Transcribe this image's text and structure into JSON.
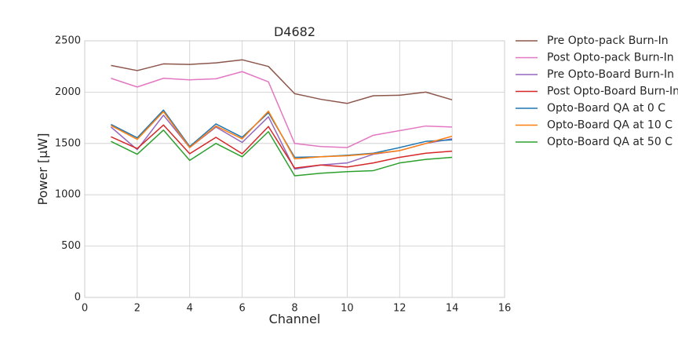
{
  "chart_data": {
    "type": "line",
    "title": "D4682",
    "xlabel": "Channel",
    "ylabel": "Power [μW]",
    "xlim": [
      0,
      16
    ],
    "ylim": [
      0,
      2500
    ],
    "xticks": [
      0,
      2,
      4,
      6,
      8,
      10,
      12,
      14,
      16
    ],
    "yticks": [
      0,
      500,
      1000,
      1500,
      2000,
      2500
    ],
    "grid": true,
    "legend_position": "outside-right",
    "x": [
      1,
      2,
      3,
      4,
      5,
      6,
      7,
      8,
      9,
      10,
      11,
      12,
      13,
      14
    ],
    "series": [
      {
        "name": "Pre Opto-pack Burn-In",
        "color": "#8c564b",
        "values": [
          2260,
          2210,
          2275,
          2270,
          2285,
          2315,
          2250,
          1985,
          1930,
          1890,
          1965,
          1970,
          2000,
          1925
        ]
      },
      {
        "name": "Post Opto-pack Burn-In",
        "color": "#e377c2",
        "values": [
          2135,
          2050,
          2135,
          2120,
          2130,
          2200,
          2100,
          1500,
          1470,
          1460,
          1580,
          1625,
          1670,
          1660
        ]
      },
      {
        "name": "Pre Opto-Board Burn-In",
        "color": "#9467bd",
        "values": [
          1660,
          1440,
          1775,
          1460,
          1660,
          1510,
          1760,
          1250,
          1290,
          1310,
          1395,
          1430,
          1500,
          1545
        ]
      },
      {
        "name": "Post Opto-Board Burn-In",
        "color": "#d62728",
        "values": [
          1565,
          1450,
          1680,
          1400,
          1560,
          1400,
          1665,
          1260,
          1290,
          1270,
          1310,
          1365,
          1405,
          1425
        ]
      },
      {
        "name": "Opto-Board QA at 0 C",
        "color": "#1f77b4",
        "values": [
          1685,
          1555,
          1825,
          1470,
          1690,
          1560,
          1800,
          1365,
          1370,
          1385,
          1405,
          1460,
          1520,
          1535
        ]
      },
      {
        "name": "Opto-Board QA at 10 C",
        "color": "#ff7f0e",
        "values": [
          1675,
          1540,
          1810,
          1460,
          1670,
          1545,
          1815,
          1350,
          1370,
          1380,
          1400,
          1430,
          1500,
          1570
        ]
      },
      {
        "name": "Opto-Board QA at 50 C",
        "color": "#2ca02c",
        "values": [
          1520,
          1395,
          1630,
          1335,
          1500,
          1370,
          1615,
          1185,
          1210,
          1225,
          1235,
          1310,
          1345,
          1365
        ]
      }
    ]
  }
}
